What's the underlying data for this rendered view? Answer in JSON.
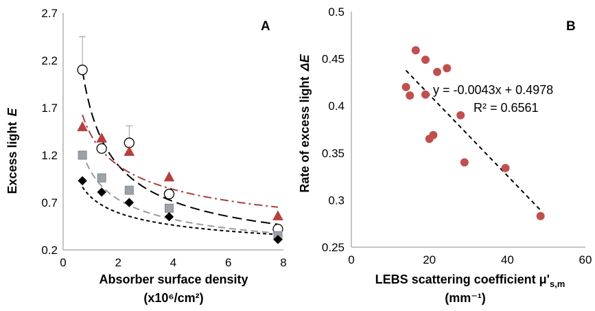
{
  "chart_data": [
    {
      "panel": "A",
      "type": "scatter",
      "ylabel": "Excess light",
      "ylabel_symbol": "E",
      "xlabel_line1": "Absorber surface density",
      "xlabel_line2": "(x10⁶/cm²)",
      "xlim": [
        0,
        8
      ],
      "ylim": [
        0.2,
        2.7
      ],
      "xticks": [
        "0",
        "2",
        "4",
        "6",
        "8"
      ],
      "yticks": [
        "0.2",
        "0.7",
        "1.2",
        "1.7",
        "2.2",
        "2.7"
      ],
      "series": [
        {
          "marker": "circle",
          "fill": "#ffffff",
          "stroke": "#000000",
          "trend_color": "#000000",
          "trend_dash": "14,7",
          "trend_a": 1.68,
          "trend_b": -0.62,
          "points": [
            {
              "x": 0.7,
              "y": 2.1,
              "err": 0.35
            },
            {
              "x": 1.4,
              "y": 1.27,
              "err": 0.0
            },
            {
              "x": 2.4,
              "y": 1.33,
              "err": 0.18
            },
            {
              "x": 3.85,
              "y": 0.79,
              "err": 0.0
            },
            {
              "x": 7.8,
              "y": 0.42,
              "err": 0.0
            }
          ]
        },
        {
          "marker": "triangle",
          "fill": "#b5403f",
          "stroke": "#b5403f",
          "trend_color": "#a5403f",
          "trend_dash": "12,5,3,5",
          "trend_a": 1.42,
          "trend_b": -0.38,
          "points": [
            {
              "x": 0.7,
              "y": 1.5,
              "err": 0.0
            },
            {
              "x": 1.4,
              "y": 1.38,
              "err": 0.0
            },
            {
              "x": 2.4,
              "y": 1.24,
              "err": 0.08
            },
            {
              "x": 3.85,
              "y": 0.97,
              "err": 0.0
            },
            {
              "x": 7.8,
              "y": 0.56,
              "err": 0.0
            }
          ]
        },
        {
          "marker": "square",
          "fill": "#9aa2aa",
          "stroke": "#7f8790",
          "trend_color": "#9a9a9a",
          "trend_dash": "10,6",
          "trend_a": 1.03,
          "trend_b": -0.49,
          "points": [
            {
              "x": 0.7,
              "y": 1.2,
              "err": 0.0
            },
            {
              "x": 1.4,
              "y": 0.96,
              "err": 0.0
            },
            {
              "x": 2.4,
              "y": 0.83,
              "err": 0.0
            },
            {
              "x": 3.85,
              "y": 0.64,
              "err": 0.0
            },
            {
              "x": 7.8,
              "y": 0.35,
              "err": 0.0
            }
          ]
        },
        {
          "marker": "diamond",
          "fill": "#000000",
          "stroke": "#000000",
          "trend_color": "#000000",
          "trend_dash": "5,4",
          "trend_a": 0.76,
          "trend_b": -0.36,
          "points": [
            {
              "x": 0.7,
              "y": 0.93,
              "err": 0.0
            },
            {
              "x": 1.4,
              "y": 0.81,
              "err": 0.0
            },
            {
              "x": 2.4,
              "y": 0.7,
              "err": 0.0
            },
            {
              "x": 3.85,
              "y": 0.55,
              "err": 0.0
            },
            {
              "x": 7.8,
              "y": 0.31,
              "err": 0.0
            }
          ]
        }
      ]
    },
    {
      "panel": "B",
      "type": "scatter",
      "ylabel": "Rate of excess light",
      "ylabel_symbol": "ΔE",
      "xlabel_line1": "LEBS scattering coefficient μ'",
      "xlabel_sub": "s,m",
      "xlabel_line2": "(mm⁻¹)",
      "xlim": [
        0,
        60
      ],
      "ylim": [
        0.25,
        0.5
      ],
      "xticks": [
        "0",
        "20",
        "40",
        "60"
      ],
      "yticks": [
        "0.25",
        "0.3",
        "0.35",
        "0.4",
        "0.45",
        "0.5"
      ],
      "marker_color": "#c0504d",
      "points": [
        {
          "x": 14.0,
          "y": 0.42
        },
        {
          "x": 15.0,
          "y": 0.411
        },
        {
          "x": 16.5,
          "y": 0.459
        },
        {
          "x": 19.0,
          "y": 0.449
        },
        {
          "x": 19.0,
          "y": 0.412
        },
        {
          "x": 20.0,
          "y": 0.365
        },
        {
          "x": 21.0,
          "y": 0.369
        },
        {
          "x": 22.0,
          "y": 0.436
        },
        {
          "x": 24.5,
          "y": 0.44
        },
        {
          "x": 28.0,
          "y": 0.39
        },
        {
          "x": 29.0,
          "y": 0.34
        },
        {
          "x": 39.5,
          "y": 0.334
        },
        {
          "x": 48.5,
          "y": 0.283
        }
      ],
      "trendline": {
        "slope": -0.0043,
        "intercept": 0.4978,
        "x_from": 14,
        "x_to": 48.5
      },
      "equation": "y = -0.0043x + 0.4978",
      "r_squared": "R² = 0.6561"
    }
  ]
}
